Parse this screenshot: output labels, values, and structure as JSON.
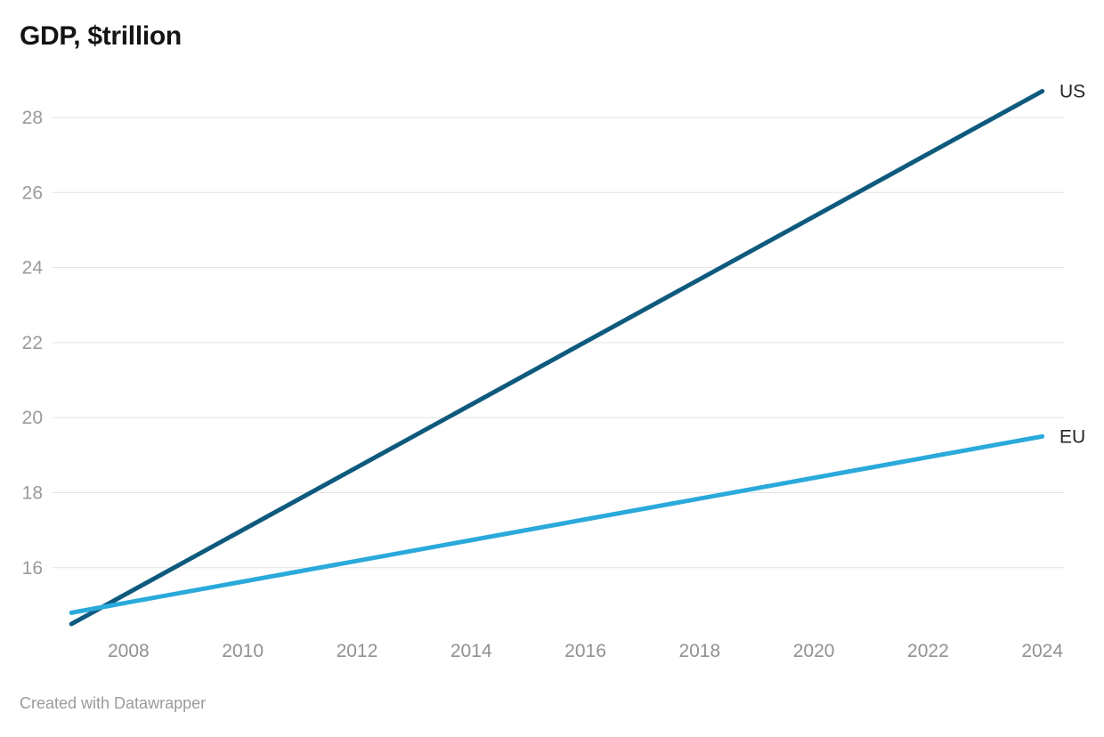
{
  "header": {
    "title": "GDP, $trillion"
  },
  "footer": {
    "credit": "Created with Datawrapper"
  },
  "colors": {
    "us_line": "#0e5a7e",
    "eu_line": "#2aa9db",
    "gridline": "#e3e3e3",
    "axis_label": "#9a9a9a",
    "title_text": "#141414",
    "credit_text": "#9b9b9b"
  },
  "chart_data": {
    "type": "line",
    "title": "GDP, $trillion",
    "xlabel": "",
    "ylabel": "",
    "x_tick_labels": [
      "2008",
      "2010",
      "2012",
      "2014",
      "2016",
      "2018",
      "2020",
      "2022",
      "2024"
    ],
    "x_ticks": [
      2008,
      2010,
      2012,
      2014,
      2016,
      2018,
      2020,
      2022,
      2024
    ],
    "y_ticks": [
      16,
      18,
      20,
      22,
      24,
      26,
      28
    ],
    "xlim": [
      2007,
      2024
    ],
    "ylim": [
      14.4,
      28.8
    ],
    "grid": "horizontal-only",
    "legend_position": "end-of-line-labels",
    "series": [
      {
        "name": "US",
        "color": "#0e5a7e",
        "x": [
          2007,
          2024
        ],
        "values": [
          14.5,
          28.7
        ]
      },
      {
        "name": "EU",
        "color": "#2aa9db",
        "x": [
          2007,
          2024
        ],
        "values": [
          14.8,
          19.5
        ]
      }
    ]
  }
}
